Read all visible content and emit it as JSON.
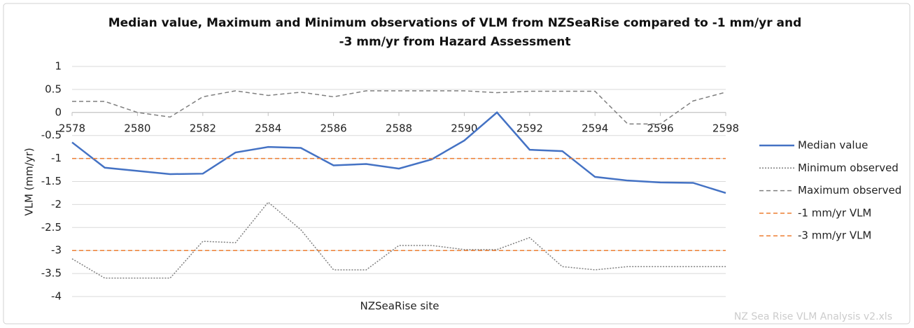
{
  "chart_data": {
    "type": "line",
    "title": "Median value, Maximum and Minimum observations of VLM from NZSeaRise compared to -1 mm/yr and -3 mm/yr from Hazard Assessment",
    "x_label": "NZSeaRise site",
    "y_label": "VLM (mm/yr)",
    "x": [
      2578,
      2579,
      2580,
      2581,
      2582,
      2583,
      2584,
      2585,
      2586,
      2587,
      2588,
      2589,
      2590,
      2591,
      2592,
      2593,
      2594,
      2595,
      2596,
      2597,
      2598
    ],
    "xlim": [
      2578,
      2598
    ],
    "xticks": [
      2578,
      2580,
      2582,
      2584,
      2586,
      2588,
      2590,
      2592,
      2594,
      2596,
      2598
    ],
    "ylim": [
      -4,
      1
    ],
    "yticks": [
      1,
      0.5,
      0,
      -0.5,
      -1,
      -1.5,
      -2,
      -2.5,
      -3,
      -3.5,
      -4
    ],
    "grid": true,
    "legend": "right",
    "series": [
      {
        "name": "Median value",
        "color": "#4472c4",
        "dash": "solid",
        "values": [
          -0.65,
          -1.2,
          -1.27,
          -1.34,
          -1.33,
          -0.87,
          -0.75,
          -0.77,
          -1.15,
          -1.12,
          -1.22,
          -1.02,
          -0.61,
          0,
          -0.81,
          -0.84,
          -1.4,
          -1.48,
          -1.52,
          -1.53,
          -1.75
        ]
      },
      {
        "name": "Minimum observed",
        "color": "#7f7f7f",
        "dash": "dotted",
        "values": [
          -3.18,
          -3.6,
          -3.6,
          -3.6,
          -2.8,
          -2.83,
          -1.95,
          -2.55,
          -3.42,
          -3.42,
          -2.89,
          -2.89,
          -2.98,
          -2.98,
          -2.72,
          -3.35,
          -3.42,
          -3.35,
          -3.35,
          -3.35,
          -3.35
        ]
      },
      {
        "name": "Maximum observed",
        "color": "#7f7f7f",
        "dash": "dashed",
        "values": [
          0.24,
          0.24,
          0,
          -0.1,
          0.34,
          0.47,
          0.37,
          0.44,
          0.34,
          0.47,
          0.47,
          0.47,
          0.47,
          0.43,
          0.46,
          0.46,
          0.46,
          -0.25,
          -0.25,
          0.25,
          0.44
        ]
      },
      {
        "name": "-1 mm/yr VLM",
        "color": "#ed7d31",
        "dash": "dashed",
        "values": [
          -1,
          -1,
          -1,
          -1,
          -1,
          -1,
          -1,
          -1,
          -1,
          -1,
          -1,
          -1,
          -1,
          -1,
          -1,
          -1,
          -1,
          -1,
          -1,
          -1,
          -1
        ]
      },
      {
        "name": "-3 mm/yr VLM",
        "color": "#ed7d31",
        "dash": "dashed",
        "values": [
          -3,
          -3,
          -3,
          -3,
          -3,
          -3,
          -3,
          -3,
          -3,
          -3,
          -3,
          -3,
          -3,
          -3,
          -3,
          -3,
          -3,
          -3,
          -3,
          -3,
          -3
        ]
      }
    ],
    "watermark": "NZ Sea Rise VLM Analysis v2.xls"
  }
}
